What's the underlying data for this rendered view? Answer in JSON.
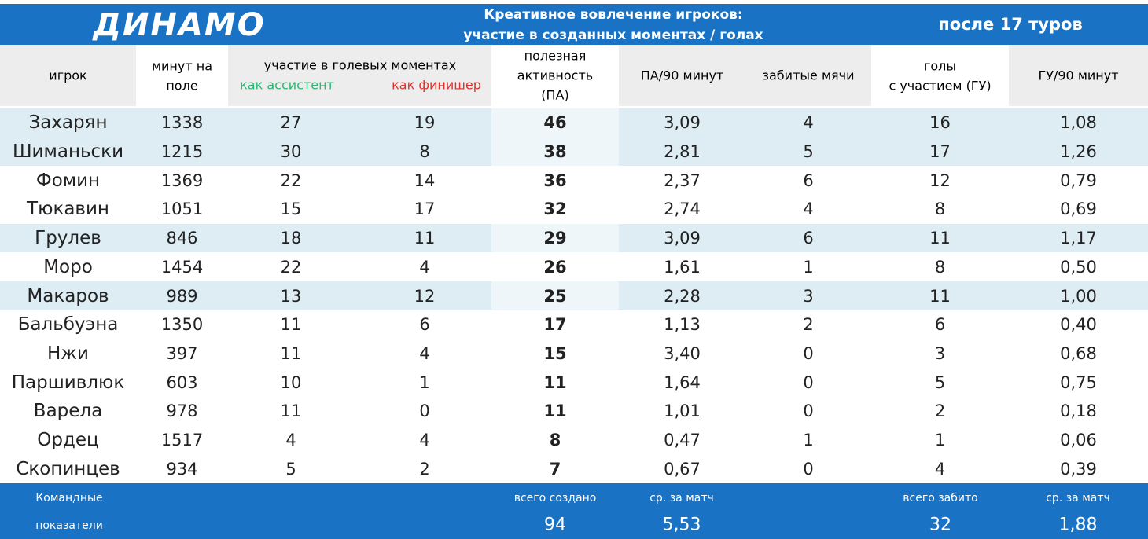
{
  "header": {
    "team": "ДИНАМО",
    "title": [
      "Креативное вовлечение игроков:",
      "участие в созданных моментах / голах"
    ],
    "period": "после 17 туров"
  },
  "table": {
    "columns": [
      [
        "игрок"
      ],
      [
        "минут на",
        "поле"
      ],
      [
        "участие в голевых моментах"
      ],
      [],
      [
        "полезная",
        "активность",
        "(ПА)"
      ],
      [
        "ПА/90 минут"
      ],
      [
        "забитые мячи"
      ],
      [
        "голы",
        "с участием (ГУ)"
      ],
      [
        "ГУ/90 минут"
      ]
    ],
    "subcolumns": [
      "как ассистент",
      "как финишер"
    ],
    "rows": [
      [
        "Захарян",
        "1338",
        "27",
        "19",
        "46",
        "3,09",
        "4",
        "16",
        "1,08"
      ],
      [
        "Шиманьски",
        "1215",
        "30",
        "8",
        "38",
        "2,81",
        "5",
        "17",
        "1,26"
      ],
      [
        "Фомин",
        "1369",
        "22",
        "14",
        "36",
        "2,37",
        "6",
        "12",
        "0,79"
      ],
      [
        "Тюкавин",
        "1051",
        "15",
        "17",
        "32",
        "2,74",
        "4",
        "8",
        "0,69"
      ],
      [
        "Грулев",
        "846",
        "18",
        "11",
        "29",
        "3,09",
        "6",
        "11",
        "1,17"
      ],
      [
        "Моро",
        "1454",
        "22",
        "4",
        "26",
        "1,61",
        "1",
        "8",
        "0,50"
      ],
      [
        "Макаров",
        "989",
        "13",
        "12",
        "25",
        "2,28",
        "3",
        "11",
        "1,00"
      ],
      [
        "Бальбуэна",
        "1350",
        "11",
        "6",
        "17",
        "1,13",
        "2",
        "6",
        "0,40"
      ],
      [
        "Нжи",
        "397",
        "11",
        "4",
        "15",
        "3,40",
        "0",
        "3",
        "0,68"
      ],
      [
        "Паршивлюк",
        "603",
        "10",
        "1",
        "11",
        "1,64",
        "0",
        "5",
        "0,75"
      ],
      [
        "Варела",
        "978",
        "11",
        "0",
        "11",
        "1,01",
        "0",
        "2",
        "0,18"
      ],
      [
        "Ордец",
        "1517",
        "4",
        "4",
        "8",
        "0,47",
        "1",
        "1",
        "0,06"
      ],
      [
        "Скопинцев",
        "934",
        "5",
        "2",
        "7",
        "0,67",
        "0",
        "4",
        "0,39"
      ]
    ]
  },
  "footer": {
    "label": [
      "Командные",
      "показатели"
    ],
    "created_label": "всего создано",
    "created": "94",
    "pa_avg_label": "ср. за матч",
    "pa_avg": "5,53",
    "scored_label": "всего забито",
    "scored": "32",
    "gu_avg_label": "ср. за матч",
    "gu_avg": "1,88"
  }
}
